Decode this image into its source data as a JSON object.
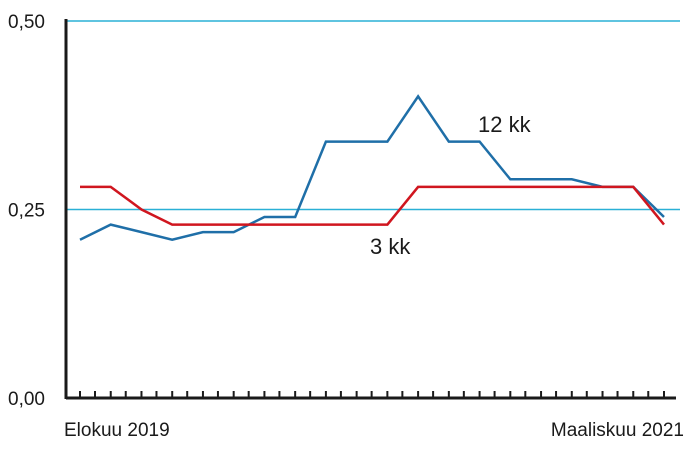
{
  "chart_data": {
    "type": "line",
    "title": "",
    "xlabel": "",
    "ylabel": "",
    "ylim": [
      0,
      0.5
    ],
    "yticks": [
      {
        "value": 0.0,
        "label": "0,00"
      },
      {
        "value": 0.25,
        "label": "0,25"
      },
      {
        "value": 0.5,
        "label": "0,50"
      }
    ],
    "grid_lines": [
      0.25,
      0.5
    ],
    "x_labels": {
      "first": "Elokuu 2019",
      "last": "Maaliskuu 2021"
    },
    "x_count": 20,
    "series": [
      {
        "name": "12 kk",
        "color": "#1f6fa8",
        "values": [
          0.21,
          0.23,
          0.22,
          0.21,
          0.22,
          0.22,
          0.24,
          0.24,
          0.34,
          0.34,
          0.34,
          0.4,
          0.34,
          0.34,
          0.29,
          0.29,
          0.29,
          0.28,
          0.28,
          0.24
        ]
      },
      {
        "name": "3 kk",
        "color": "#d0161f",
        "values": [
          0.28,
          0.28,
          0.25,
          0.23,
          0.23,
          0.23,
          0.23,
          0.23,
          0.23,
          0.23,
          0.23,
          0.28,
          0.28,
          0.28,
          0.28,
          0.28,
          0.28,
          0.28,
          0.28,
          0.23
        ]
      }
    ],
    "colors": {
      "axis": "#1a1a1a",
      "grid": "#2ab0d6"
    }
  }
}
